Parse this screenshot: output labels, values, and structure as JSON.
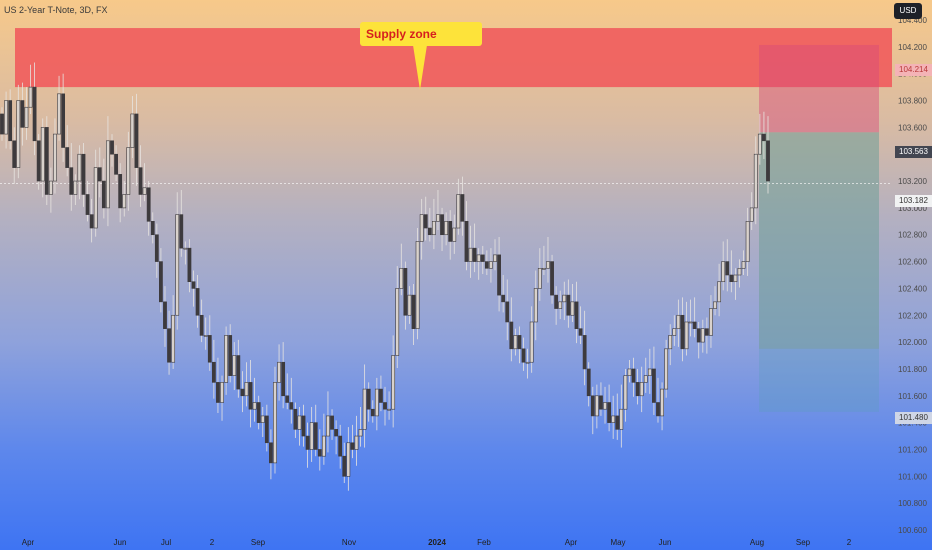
{
  "header": {
    "symbol": "US 2-Year T-Note, 3D, FX",
    "currency_button": "USD"
  },
  "annotation": {
    "label": "Supply zone"
  },
  "price_tags": {
    "supply_top": "104.214",
    "last_close": "103.563",
    "crosshair": "103.182",
    "target": "101.480"
  },
  "colors": {
    "supply_zone": "#f0595b",
    "risk_zone": "#d84a7a",
    "reward_zone": "#6e9f98",
    "target_zone": "#5d9fbe",
    "candle": "#3d3a3d",
    "callout": "#fde33a"
  },
  "chart_data": {
    "type": "candlestick",
    "title": "US 2-Year T-Note, 3D, FX",
    "ylim": [
      100.6,
      104.4
    ],
    "y_ticks": [
      "104.400",
      "104.200",
      "104.000",
      "103.800",
      "103.600",
      "103.400",
      "103.200",
      "103.000",
      "102.800",
      "102.600",
      "102.400",
      "102.200",
      "102.000",
      "101.800",
      "101.600",
      "101.400",
      "101.200",
      "101.000",
      "100.800",
      "100.600"
    ],
    "x_ticks": [
      "Apr",
      "Jun",
      "Jul",
      "2",
      "Sep",
      "Nov",
      "2024",
      "Feb",
      "Apr",
      "May",
      "Jun",
      "Aug",
      "Sep",
      "2"
    ],
    "supply_zone": {
      "low": 103.9,
      "high": 104.34
    },
    "position": {
      "entry": 103.563,
      "stop": 104.214,
      "target": 101.48
    },
    "closes": [
      103.55,
      103.8,
      103.5,
      103.3,
      103.8,
      103.6,
      103.75,
      103.9,
      103.5,
      103.2,
      103.6,
      103.1,
      103.2,
      103.55,
      103.85,
      103.45,
      103.3,
      103.1,
      103.2,
      103.4,
      103.1,
      102.95,
      102.85,
      103.3,
      103.2,
      103.0,
      103.5,
      103.4,
      103.25,
      103.0,
      103.1,
      103.45,
      103.7,
      103.3,
      103.1,
      103.15,
      102.9,
      102.8,
      102.6,
      102.3,
      102.1,
      101.85,
      102.2,
      102.95,
      102.7,
      102.7,
      102.45,
      102.4,
      102.2,
      102.05,
      102.05,
      101.85,
      101.7,
      101.55,
      101.7,
      102.05,
      101.75,
      101.9,
      101.65,
      101.6,
      101.7,
      101.5,
      101.55,
      101.4,
      101.45,
      101.25,
      101.1,
      101.7,
      101.85,
      101.6,
      101.55,
      101.5,
      101.35,
      101.45,
      101.3,
      101.2,
      101.4,
      101.2,
      101.15,
      101.3,
      101.45,
      101.35,
      101.3,
      101.15,
      101.0,
      101.25,
      101.2,
      101.3,
      101.35,
      101.65,
      101.5,
      101.45,
      101.65,
      101.55,
      101.5,
      101.5,
      101.9,
      102.4,
      102.55,
      102.2,
      102.35,
      102.1,
      102.75,
      102.95,
      102.85,
      102.8,
      102.9,
      102.95,
      102.8,
      102.9,
      102.75,
      102.85,
      103.1,
      102.9,
      102.6,
      102.7,
      102.6,
      102.65,
      102.6,
      102.55,
      102.6,
      102.65,
      102.35,
      102.3,
      102.15,
      101.95,
      102.05,
      101.95,
      101.85,
      101.85,
      102.15,
      102.4,
      102.55,
      102.55,
      102.6,
      102.35,
      102.25,
      102.3,
      102.35,
      102.2,
      102.3,
      102.1,
      102.05,
      101.8,
      101.6,
      101.45,
      101.6,
      101.5,
      101.55,
      101.4,
      101.45,
      101.35,
      101.5,
      101.75,
      101.8,
      101.7,
      101.6,
      101.7,
      101.75,
      101.8,
      101.55,
      101.45,
      101.65,
      101.95,
      102.05,
      102.1,
      102.2,
      101.95,
      102.15,
      102.15,
      102.1,
      102.0,
      102.1,
      102.05,
      102.25,
      102.3,
      102.45,
      102.6,
      102.5,
      102.45,
      102.5,
      102.55,
      102.6,
      102.9,
      103.0,
      103.4,
      103.55,
      103.5,
      103.2
    ]
  }
}
